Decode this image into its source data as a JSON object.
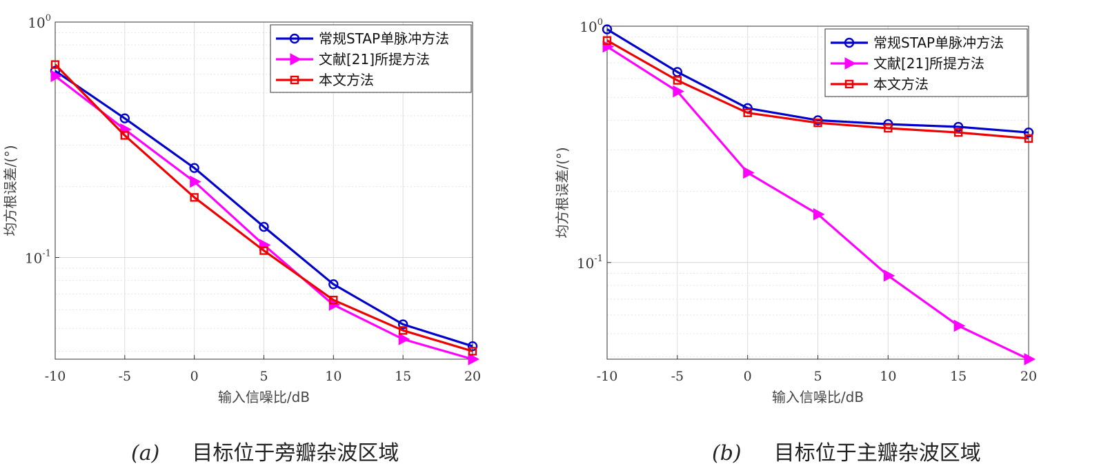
{
  "chart_data": [
    {
      "type": "line",
      "yscale": "log",
      "xlabel": "输入信噪比/dB",
      "ylabel": "均方根误差/(°)",
      "x": [
        -10,
        -5,
        0,
        5,
        10,
        15,
        20
      ],
      "xticks": [
        "-10",
        "-5",
        "0",
        "5",
        "10",
        "15",
        "20"
      ],
      "xlim": [
        -10,
        20
      ],
      "ylim": [
        0.037,
        1
      ],
      "yticks": [
        {
          "base": "10",
          "exp": "0"
        },
        {
          "base": "10",
          "exp": "-1"
        }
      ],
      "grid": true,
      "legend_position": "top-right",
      "series": [
        {
          "name": "常规STAP单脉冲方法",
          "color": "#0000cc",
          "marker": "circle",
          "values": [
            0.62,
            0.39,
            0.24,
            0.135,
            0.077,
            0.052,
            0.042
          ]
        },
        {
          "name": "文献[21]所提方法",
          "color": "#ff00ff",
          "marker": "triangle-right",
          "values": [
            0.59,
            0.35,
            0.21,
            0.113,
            0.063,
            0.045,
            0.037
          ]
        },
        {
          "name": "本文方法",
          "color": "#ee0000",
          "marker": "square",
          "values": [
            0.66,
            0.33,
            0.18,
            0.107,
            0.066,
            0.049,
            0.04
          ]
        }
      ],
      "caption": {
        "tag": "(a)",
        "text": "目标位于旁瓣杂波区域"
      }
    },
    {
      "type": "line",
      "yscale": "log",
      "xlabel": "输入信噪比/dB",
      "ylabel": "均方根误差/(°)",
      "x": [
        -10,
        -5,
        0,
        5,
        10,
        15,
        20
      ],
      "xticks": [
        "-10",
        "-5",
        "0",
        "5",
        "10",
        "15",
        "20"
      ],
      "xlim": [
        -10,
        20
      ],
      "ylim": [
        0.039,
        1
      ],
      "yticks": [
        {
          "base": "10",
          "exp": "0"
        },
        {
          "base": "10",
          "exp": "-1"
        }
      ],
      "grid": true,
      "legend_position": "top-right",
      "series": [
        {
          "name": "常规STAP单脉冲方法",
          "color": "#0000cc",
          "marker": "circle",
          "values": [
            0.97,
            0.64,
            0.45,
            0.4,
            0.385,
            0.375,
            0.355
          ]
        },
        {
          "name": "文献[21]所提方法",
          "color": "#ff00ff",
          "marker": "triangle-right",
          "values": [
            0.82,
            0.53,
            0.24,
            0.16,
            0.088,
            0.054,
            0.039
          ]
        },
        {
          "name": "本文方法",
          "color": "#ee0000",
          "marker": "square",
          "values": [
            0.87,
            0.59,
            0.43,
            0.39,
            0.37,
            0.355,
            0.335
          ]
        }
      ],
      "caption": {
        "tag": "(b)",
        "text": "目标位于主瓣杂波区域"
      }
    }
  ]
}
